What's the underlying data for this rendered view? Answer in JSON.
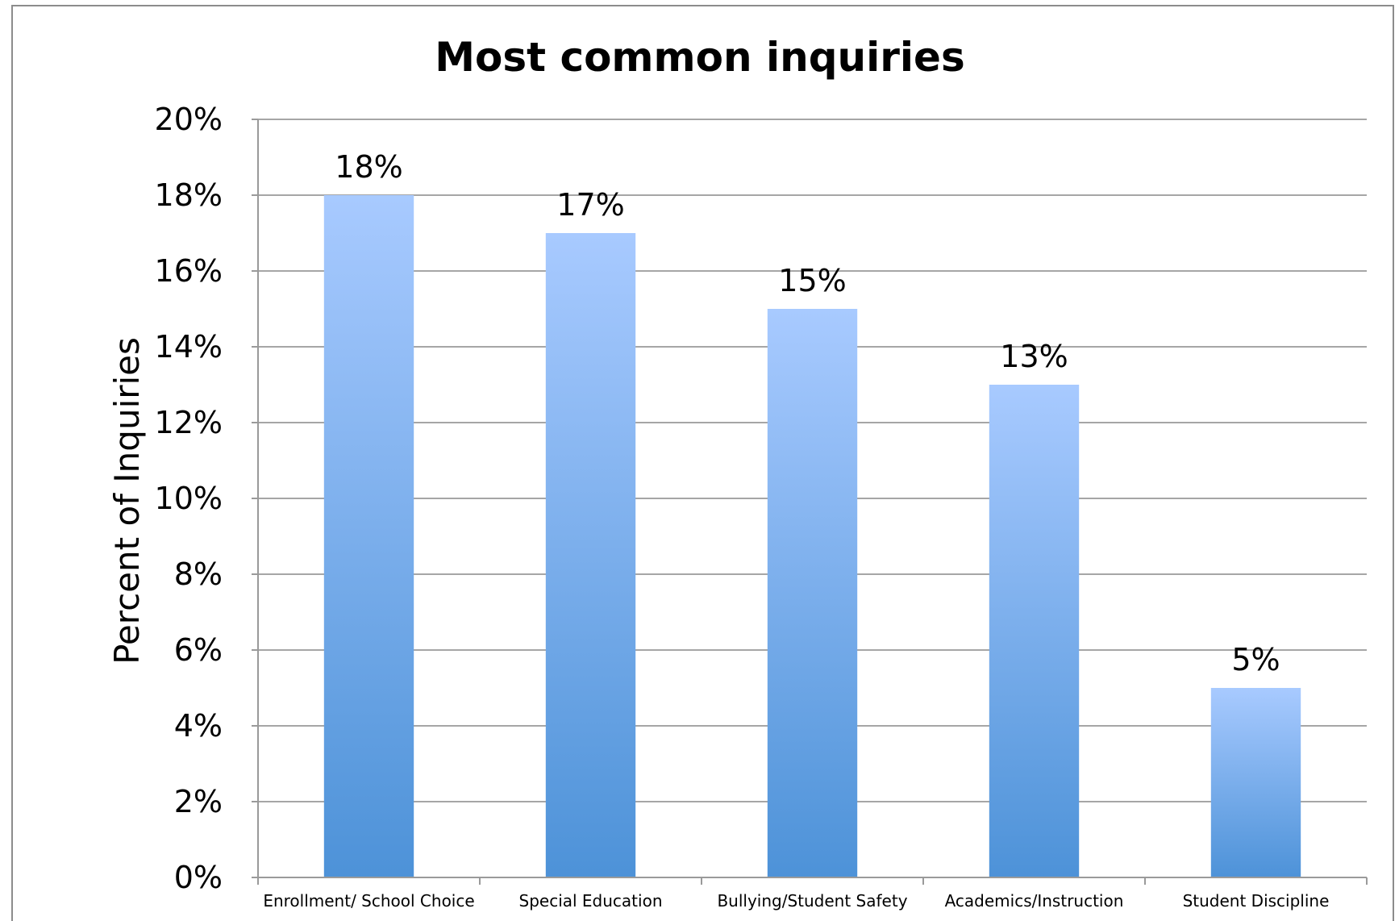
{
  "chart_data": {
    "type": "bar",
    "title": "Most common inquiries",
    "xlabel": "",
    "ylabel": "Percent of Inquiries",
    "categories": [
      "Enrollment/ School Choice",
      "Special Education",
      "Bullying/Student Safety",
      "Academics/Instruction",
      "Student Discipline"
    ],
    "values": [
      18,
      17,
      15,
      13,
      5
    ],
    "data_labels": [
      "18%",
      "17%",
      "15%",
      "13%",
      "5%"
    ],
    "y_ticks": [
      "0%",
      "2%",
      "4%",
      "6%",
      "8%",
      "10%",
      "12%",
      "14%",
      "16%",
      "18%",
      "20%"
    ],
    "ylim": [
      0,
      20
    ],
    "grid": true,
    "legend": "none",
    "colors": {
      "bar_top": "#a8caff",
      "bar_bottom": "#4d92d8",
      "grid": "#a6a6a6"
    }
  }
}
